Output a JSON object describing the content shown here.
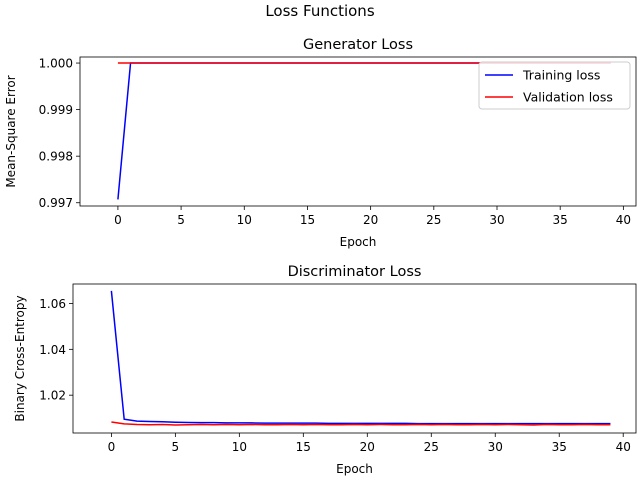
{
  "figure": {
    "suptitle": "Loss Functions"
  },
  "chart_data": [
    {
      "type": "line",
      "title": "Generator Loss",
      "xlabel": "Epoch",
      "ylabel": "Mean-Square Error",
      "xlim": [
        -3,
        41
      ],
      "ylim": [
        0.99693,
        1.00013
      ],
      "xticks": [
        0,
        5,
        10,
        15,
        20,
        25,
        30,
        35,
        40
      ],
      "xtick_labels": [
        "0",
        "5",
        "10",
        "15",
        "20",
        "25",
        "30",
        "35",
        "40"
      ],
      "yticks": [
        0.997,
        0.998,
        0.999,
        1.0
      ],
      "ytick_labels": [
        "0.997",
        "0.998",
        "0.999",
        "1.000"
      ],
      "grid": false,
      "legend": {
        "placement": "top-right",
        "entries": [
          "Training loss",
          "Validation loss"
        ]
      },
      "series": [
        {
          "name": "Training loss",
          "color": "#0000ff",
          "x": [
            0,
            1,
            2,
            3,
            4,
            5,
            6,
            7,
            8,
            9,
            10,
            11,
            12,
            13,
            14,
            15,
            16,
            17,
            18,
            19,
            20,
            21,
            22,
            23,
            24,
            25,
            26,
            27,
            28,
            29,
            30,
            31,
            32,
            33,
            34,
            35,
            36,
            37,
            38,
            39
          ],
          "y": [
            0.99707,
            1.0,
            1.0,
            1.0,
            1.0,
            1.0,
            1.0,
            1.0,
            1.0,
            1.0,
            1.0,
            1.0,
            1.0,
            1.0,
            1.0,
            1.0,
            1.0,
            1.0,
            1.0,
            1.0,
            1.0,
            1.0,
            1.0,
            1.0,
            1.0,
            1.0,
            1.0,
            1.0,
            1.0,
            1.0,
            1.0,
            1.0,
            1.0,
            1.0,
            1.0,
            1.0,
            1.0,
            1.0,
            1.0,
            1.0
          ]
        },
        {
          "name": "Validation loss",
          "color": "#ff0000",
          "x": [
            0,
            1,
            2,
            3,
            4,
            5,
            6,
            7,
            8,
            9,
            10,
            11,
            12,
            13,
            14,
            15,
            16,
            17,
            18,
            19,
            20,
            21,
            22,
            23,
            24,
            25,
            26,
            27,
            28,
            29,
            30,
            31,
            32,
            33,
            34,
            35,
            36,
            37,
            38,
            39
          ],
          "y": [
            1.0,
            1.0,
            1.0,
            1.0,
            1.0,
            1.0,
            1.0,
            1.0,
            1.0,
            1.0,
            1.0,
            1.0,
            1.0,
            1.0,
            1.0,
            1.0,
            1.0,
            1.0,
            1.0,
            1.0,
            1.0,
            1.0,
            1.0,
            1.0,
            1.0,
            1.0,
            1.0,
            1.0,
            1.0,
            1.0,
            1.0,
            1.0,
            1.0,
            1.0,
            1.0,
            1.0,
            1.0,
            1.0,
            1.0,
            1.0
          ]
        }
      ]
    },
    {
      "type": "line",
      "title": "Discriminator Loss",
      "xlabel": "Epoch",
      "ylabel": "Binary Cross-Entropy",
      "xlim": [
        -3,
        41
      ],
      "ylim": [
        1.0035,
        1.0685
      ],
      "xticks": [
        0,
        5,
        10,
        15,
        20,
        25,
        30,
        35,
        40
      ],
      "xtick_labels": [
        "0",
        "5",
        "10",
        "15",
        "20",
        "25",
        "30",
        "35",
        "40"
      ],
      "yticks": [
        1.02,
        1.04,
        1.06
      ],
      "ytick_labels": [
        "1.02",
        "1.04",
        "1.06"
      ],
      "grid": false,
      "series": [
        {
          "name": "Training loss",
          "color": "#0000ff",
          "x": [
            0,
            1,
            2,
            3,
            4,
            5,
            6,
            7,
            8,
            9,
            10,
            11,
            12,
            13,
            14,
            15,
            16,
            17,
            18,
            19,
            20,
            21,
            22,
            23,
            24,
            25,
            26,
            27,
            28,
            29,
            30,
            31,
            32,
            33,
            34,
            35,
            36,
            37,
            38,
            39
          ],
          "y": [
            1.0655,
            1.0095,
            1.0087,
            1.0085,
            1.0084,
            1.0082,
            1.0081,
            1.008,
            1.008,
            1.0079,
            1.0079,
            1.0079,
            1.0078,
            1.0078,
            1.0078,
            1.0078,
            1.0078,
            1.0077,
            1.0077,
            1.0077,
            1.0077,
            1.0077,
            1.0077,
            1.0077,
            1.0076,
            1.0076,
            1.0076,
            1.0076,
            1.0076,
            1.0076,
            1.0076,
            1.0076,
            1.0076,
            1.0076,
            1.0076,
            1.0076,
            1.0076,
            1.0076,
            1.0076,
            1.0076
          ]
        },
        {
          "name": "Validation loss",
          "color": "#ff0000",
          "x": [
            0,
            1,
            2,
            3,
            4,
            5,
            6,
            7,
            8,
            9,
            10,
            11,
            12,
            13,
            14,
            15,
            16,
            17,
            18,
            19,
            20,
            21,
            22,
            23,
            24,
            25,
            26,
            27,
            28,
            29,
            30,
            31,
            32,
            33,
            34,
            35,
            36,
            37,
            38,
            39
          ],
          "y": [
            1.0083,
            1.0075,
            1.0072,
            1.0071,
            1.0072,
            1.007,
            1.0071,
            1.0072,
            1.0071,
            1.0072,
            1.0071,
            1.0072,
            1.0071,
            1.0071,
            1.0072,
            1.0071,
            1.0072,
            1.0071,
            1.0071,
            1.0072,
            1.0071,
            1.0072,
            1.0071,
            1.0071,
            1.0072,
            1.0071,
            1.0072,
            1.0071,
            1.0071,
            1.0072,
            1.0071,
            1.0072,
            1.0071,
            1.007,
            1.0072,
            1.0071,
            1.0071,
            1.0072,
            1.0071,
            1.0071
          ]
        }
      ]
    }
  ]
}
